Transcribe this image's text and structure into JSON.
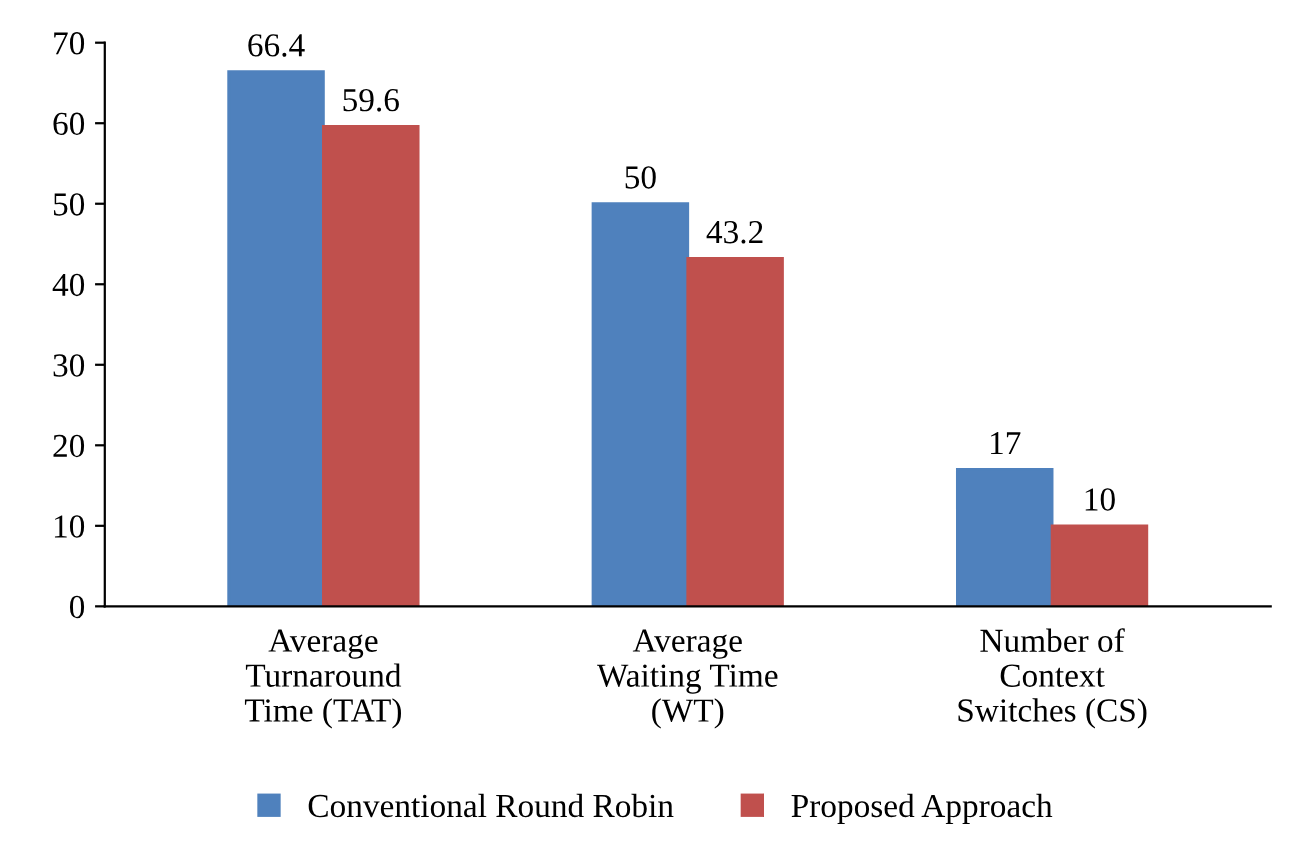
{
  "chart_data": {
    "type": "bar",
    "categories": [
      "Average\nTurnaround\nTime (TAT)",
      "Average\nWaiting Time\n(WT)",
      "Number of\nContext\nSwitches (CS)"
    ],
    "series": [
      {
        "name": "Conventional Round Robin",
        "color": "#4f81bd",
        "values": [
          66.4,
          50,
          17
        ]
      },
      {
        "name": "Proposed Approach",
        "color": "#c0504d",
        "values": [
          59.6,
          43.2,
          10
        ]
      }
    ],
    "ylim": [
      0,
      70
    ],
    "yticks": [
      0,
      10,
      20,
      30,
      40,
      50,
      60,
      70
    ],
    "data_labels": true,
    "grid": false,
    "legend": "bottom"
  }
}
